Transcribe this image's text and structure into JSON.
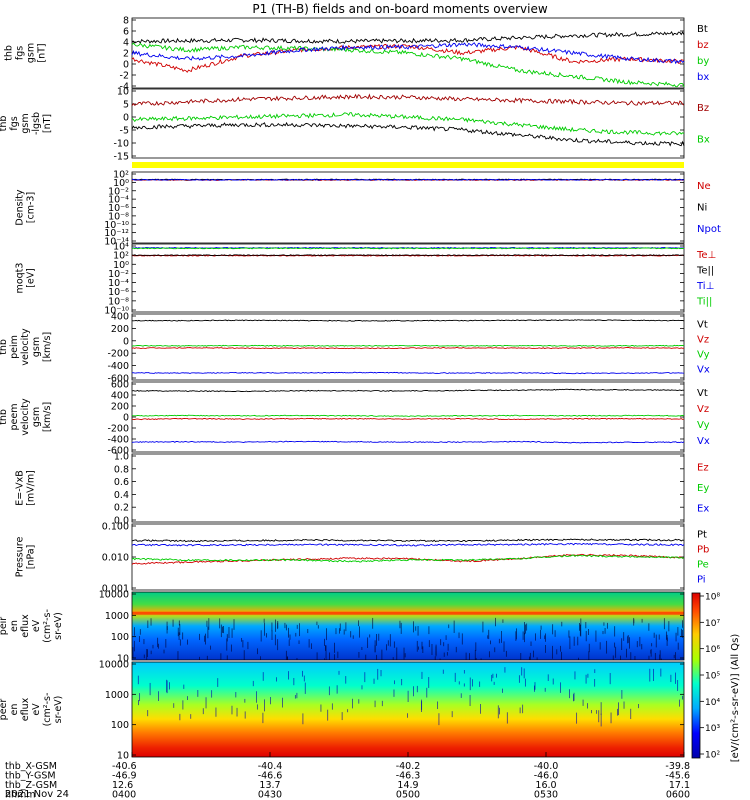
{
  "title": "P1 (TH-B) fields and on-board moments overview",
  "colors": {
    "black": "#000000",
    "red": "#d00000",
    "green": "#00cc00",
    "blue": "#0000ee",
    "darkred": "#a00000",
    "yellow": "#ffff00"
  },
  "chart_data": [
    {
      "id": "fgs",
      "type": "line",
      "ylabel": [
        "thb",
        "fgs",
        "gsm",
        "[nT]"
      ],
      "yticks": [
        "8",
        "6",
        "4",
        "2",
        "0",
        "-2",
        "-4"
      ],
      "ylim": [
        -4,
        8
      ],
      "series": [
        {
          "name": "Bt",
          "color": "#000000",
          "values": [
            4.0,
            4.1,
            4.2,
            4.1,
            4.0,
            4.1,
            4.2,
            4.6,
            5.0,
            5.2,
            5.4
          ]
        },
        {
          "name": "bz",
          "color": "#d00000",
          "values": [
            1.0,
            -1.0,
            1.5,
            2.5,
            3.0,
            3.2,
            2.0,
            3.0,
            0.5,
            1.0,
            0.5
          ]
        },
        {
          "name": "by",
          "color": "#00cc00",
          "values": [
            3.5,
            2.5,
            3.0,
            2.8,
            2.5,
            2.0,
            1.0,
            -1.0,
            -2.0,
            -3.0,
            -3.5
          ]
        },
        {
          "name": "bx",
          "color": "#0000ee",
          "values": [
            2.0,
            1.0,
            1.5,
            2.5,
            3.0,
            3.0,
            3.5,
            3.0,
            2.0,
            1.0,
            0.5
          ]
        }
      ]
    },
    {
      "id": "fgs_gse",
      "type": "line",
      "ylabel": [
        "thb",
        "fgs",
        "gsm",
        "-lgsb",
        "[nT]"
      ],
      "yticks": [
        "10",
        "5",
        "0",
        "-5",
        "-10",
        "-15"
      ],
      "ylim": [
        -17,
        10
      ],
      "series": [
        {
          "name": "Bz",
          "color": "#a00000",
          "values": [
            4.0,
            5.0,
            6.0,
            6.5,
            7.0,
            6.8,
            6.0,
            5.5,
            5.0,
            4.5,
            4.5
          ]
        },
        {
          "name": "Bx",
          "color": "#00cc00",
          "values": [
            -2.0,
            -1.5,
            -1.0,
            -0.5,
            0.0,
            -1.0,
            -2.0,
            -4.0,
            -6.0,
            -7.0,
            -7.5
          ]
        },
        {
          "name": "",
          "color": "#000000",
          "values": [
            -5.0,
            -4.5,
            -4.0,
            -4.0,
            -4.5,
            -5.0,
            -6.0,
            -8.0,
            -10.0,
            -11.0,
            -11.5
          ]
        }
      ]
    },
    {
      "id": "density",
      "type": "line",
      "ylabel": [
        "Density",
        "[cm-3]"
      ],
      "yticks": [
        "10²",
        "10⁰",
        "10⁻²",
        "10⁻⁴",
        "10⁻⁶",
        "10⁻⁸",
        "10⁻¹⁰",
        "10⁻¹²",
        "10⁻¹⁴"
      ],
      "ylim_log10": [
        -14,
        2
      ],
      "log": true,
      "series": [
        {
          "name": "Ne",
          "color": "#d00000",
          "values_log10": [
            0.2,
            0.2,
            0.2,
            0.2,
            0.2,
            0.2,
            0.2,
            0.2,
            0.2,
            0.2,
            0.2
          ]
        },
        {
          "name": "Ni",
          "color": "#000000",
          "values_log10": [
            0.3,
            0.3,
            0.3,
            0.3,
            0.3,
            0.3,
            0.3,
            0.3,
            0.3,
            0.3,
            0.3
          ]
        },
        {
          "name": "Npot",
          "color": "#0000ee",
          "values_log10": [
            0.25,
            0.25,
            0.25,
            0.25,
            0.25,
            0.25,
            0.25,
            0.25,
            0.25,
            0.25,
            0.25
          ]
        }
      ]
    },
    {
      "id": "temp",
      "type": "line",
      "ylabel": [
        "moqt3",
        "[eV]"
      ],
      "yticks": [
        "10⁴",
        "10²",
        "10⁰",
        "10⁻²",
        "10⁻⁴",
        "10⁻⁶",
        "10⁻⁸",
        "10⁻¹⁰"
      ],
      "ylim_log10": [
        -10,
        4
      ],
      "log": true,
      "series": [
        {
          "name": "Te⊥",
          "color": "#d00000",
          "values_log10": [
            1.6,
            1.6,
            1.6,
            1.6,
            1.6,
            1.6,
            1.6,
            1.6,
            1.6,
            1.6,
            1.6
          ]
        },
        {
          "name": "Te||",
          "color": "#000000",
          "values_log10": [
            1.7,
            1.7,
            1.7,
            1.7,
            1.7,
            1.7,
            1.7,
            1.7,
            1.7,
            1.7,
            1.7
          ]
        },
        {
          "name": "Ti⊥",
          "color": "#0000ee",
          "values_log10": [
            3.2,
            3.2,
            3.2,
            3.2,
            3.2,
            3.2,
            3.2,
            3.2,
            3.2,
            3.2,
            3.2
          ]
        },
        {
          "name": "Ti||",
          "color": "#00cc00",
          "values_log10": [
            3.1,
            3.1,
            3.1,
            3.1,
            3.1,
            3.1,
            3.1,
            3.1,
            3.1,
            3.1,
            3.1
          ]
        }
      ]
    },
    {
      "id": "peim",
      "type": "line",
      "ylabel": [
        "thb",
        "peim",
        "velocity",
        "gsm",
        "[km/s]"
      ],
      "yticks": [
        "400",
        "200",
        "0",
        "-200",
        "-400",
        "-600"
      ],
      "ylim": [
        -600,
        600
      ],
      "series": [
        {
          "name": "Vt",
          "color": "#000000",
          "values": [
            480,
            480,
            485,
            480,
            475,
            480,
            480,
            485,
            490,
            485,
            480
          ]
        },
        {
          "name": "Vz",
          "color": "#d00000",
          "values": [
            -20,
            -15,
            -20,
            -20,
            -25,
            -20,
            -15,
            -20,
            -20,
            -15,
            -20
          ]
        },
        {
          "name": "Vy",
          "color": "#00cc00",
          "values": [
            20,
            20,
            25,
            20,
            20,
            25,
            20,
            25,
            20,
            20,
            25
          ]
        },
        {
          "name": "Vx",
          "color": "#0000ee",
          "values": [
            -470,
            -475,
            -470,
            -470,
            -465,
            -470,
            -475,
            -470,
            -480,
            -475,
            -470
          ]
        }
      ]
    },
    {
      "id": "peem",
      "type": "line",
      "ylabel": [
        "thb",
        "peem",
        "velocity",
        "gsm",
        "[km/s]"
      ],
      "yticks": [
        "600",
        "400",
        "200",
        "0",
        "-200",
        "-400",
        "-600"
      ],
      "ylim": [
        -600,
        600
      ],
      "series": [
        {
          "name": "Vt",
          "color": "#000000",
          "values": [
            450,
            445,
            440,
            450,
            450,
            445,
            455,
            460,
            470,
            465,
            460
          ]
        },
        {
          "name": "Vz",
          "color": "#d00000",
          "values": [
            -40,
            -30,
            -35,
            -30,
            -30,
            -35,
            -30,
            -40,
            -30,
            -30,
            -35
          ]
        },
        {
          "name": "Vy",
          "color": "#00cc00",
          "values": [
            20,
            25,
            20,
            25,
            20,
            15,
            20,
            25,
            20,
            25,
            20
          ]
        },
        {
          "name": "Vx",
          "color": "#0000ee",
          "values": [
            -430,
            -425,
            -430,
            -420,
            -425,
            -430,
            -430,
            -420,
            -440,
            -435,
            -430
          ]
        }
      ]
    },
    {
      "id": "efield",
      "type": "line",
      "ylabel": [
        "E=-VxB",
        "[mV/m]"
      ],
      "yticks": [
        "1.0",
        "0.8",
        "0.6",
        "0.4",
        "0.2",
        "0.0"
      ],
      "ylim": [
        0,
        1
      ],
      "series": [
        {
          "name": "Ez",
          "color": "#d00000",
          "values": []
        },
        {
          "name": "Ey",
          "color": "#00cc00",
          "values": []
        },
        {
          "name": "Ex",
          "color": "#0000ee",
          "values": []
        }
      ]
    },
    {
      "id": "pressure",
      "type": "line",
      "ylabel": [
        "Pressure",
        "[nPa]"
      ],
      "yticks": [
        "0.100",
        "0.010",
        "0.001"
      ],
      "ylim_log10": [
        -3,
        -0.8
      ],
      "log": true,
      "series": [
        {
          "name": "Pt",
          "color": "#000000",
          "values": [
            0.045,
            0.043,
            0.044,
            0.046,
            0.045,
            0.044,
            0.043,
            0.046,
            0.048,
            0.047,
            0.046
          ]
        },
        {
          "name": "Pb",
          "color": "#d00000",
          "values": [
            0.0075,
            0.0085,
            0.0095,
            0.0105,
            0.0115,
            0.011,
            0.009,
            0.011,
            0.015,
            0.014,
            0.012
          ]
        },
        {
          "name": "Pe",
          "color": "#00cc00",
          "values": [
            0.011,
            0.01,
            0.01,
            0.01,
            0.009,
            0.01,
            0.01,
            0.011,
            0.014,
            0.013,
            0.012
          ]
        },
        {
          "name": "Pi",
          "color": "#0000ee",
          "values": [
            0.032,
            0.031,
            0.032,
            0.033,
            0.032,
            0.031,
            0.032,
            0.033,
            0.034,
            0.033,
            0.032
          ]
        }
      ]
    },
    {
      "id": "peir",
      "type": "heatmap",
      "ylabel": [
        "thb",
        "peir",
        "en",
        "eflux",
        "eV",
        "(cm²-s-",
        "sr-eV)"
      ],
      "yticks": [
        "10000",
        "1000",
        "100",
        "10"
      ],
      "ylim_log10": [
        0.8,
        4.3
      ],
      "log": true
    },
    {
      "id": "peer",
      "type": "heatmap",
      "ylabel": [
        "thb",
        "peer",
        "en",
        "eflux",
        "eV",
        "(cm²-s-",
        "sr-eV)"
      ],
      "yticks": [
        "10000",
        "1000",
        "100",
        "10"
      ],
      "ylim_log10": [
        0.8,
        4.3
      ],
      "log": true
    }
  ],
  "colorbar": {
    "ticks": [
      "10⁸",
      "10⁷",
      "10⁶",
      "10⁵",
      "10⁴",
      "10³",
      "10²"
    ],
    "label": "[eV/(cm²-s-sr-eV)] (All Qs)",
    "label2": "[eV/(cm²-s-sr-eV)] (All Qs)"
  },
  "xaxis": {
    "rows": [
      {
        "label": "thb_X-GSM",
        "values": [
          "-40.6",
          "-40.4",
          "-40.2",
          "-40.0",
          "-39.8"
        ]
      },
      {
        "label": "thb_Y-GSM",
        "values": [
          "-46.9",
          "-46.6",
          "-46.3",
          "-46.0",
          "-45.6"
        ]
      },
      {
        "label": "thb_Z-GSM",
        "values": [
          "12.6",
          "13.7",
          "14.9",
          "16.0",
          "17.1"
        ]
      },
      {
        "label": "hhmm",
        "values": [
          "0400",
          "0430",
          "0500",
          "0530",
          "0600"
        ]
      }
    ],
    "date": "2021 Nov 24"
  }
}
